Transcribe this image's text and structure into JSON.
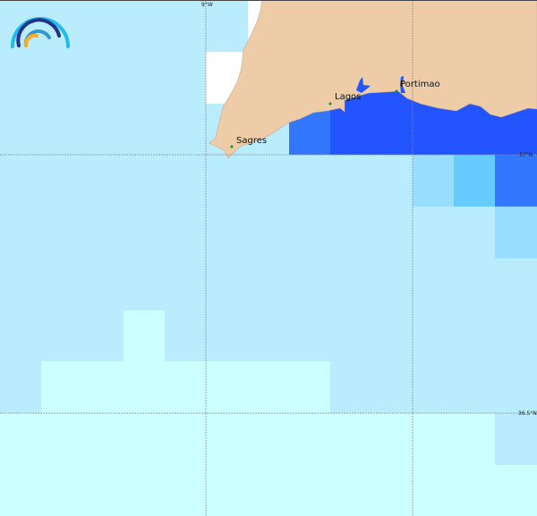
{
  "map": {
    "colors": {
      "land": "#efcca8",
      "sea_light": "#b9ecfc",
      "sea_lightest": "#ccffff",
      "sea_mid": "#99ddff",
      "sea_medium": "#66ccff",
      "sea_dark": "#3377ff",
      "sea_darkest": "#2255ff",
      "no_data": "#ffffff"
    },
    "graticule": {
      "lon_label": "9°W",
      "lat_labels": [
        "37°N",
        "36.5°N"
      ]
    },
    "places": [
      {
        "name": "Sagres"
      },
      {
        "name": "Lagos"
      },
      {
        "name": "Portimao"
      }
    ],
    "logo": "rainbow-arcs-logo"
  }
}
